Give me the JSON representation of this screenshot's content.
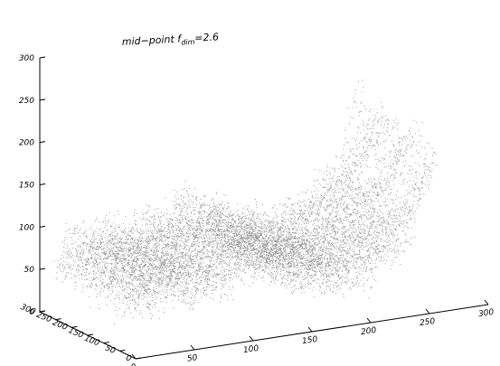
{
  "chart_data": {
    "type": "surface",
    "title": "mid−point f",
    "title_subscript": "dim",
    "title_suffix": "=2.6",
    "xlabel": "",
    "ylabel": "",
    "zlabel": "",
    "x_ticks": [
      "0",
      "50",
      "100",
      "150",
      "200",
      "250",
      "300"
    ],
    "y_ticks": [
      "0",
      "50",
      "100",
      "150",
      "200",
      "250",
      "300"
    ],
    "z_ticks": [
      "0",
      "50",
      "100",
      "150",
      "200",
      "250",
      "300"
    ],
    "xlim": [
      0,
      300
    ],
    "ylim": [
      0,
      300
    ],
    "zlim": [
      0,
      300
    ],
    "grid": false,
    "colormap": "grayscale",
    "surface_profile_along_x": [
      {
        "x": 0,
        "z": 95
      },
      {
        "x": 30,
        "z": 110
      },
      {
        "x": 60,
        "z": 105
      },
      {
        "x": 90,
        "z": 115
      },
      {
        "x": 110,
        "z": 130
      },
      {
        "x": 130,
        "z": 110
      },
      {
        "x": 160,
        "z": 95
      },
      {
        "x": 190,
        "z": 90
      },
      {
        "x": 220,
        "z": 115
      },
      {
        "x": 240,
        "z": 140
      },
      {
        "x": 256,
        "z": 220
      }
    ]
  }
}
